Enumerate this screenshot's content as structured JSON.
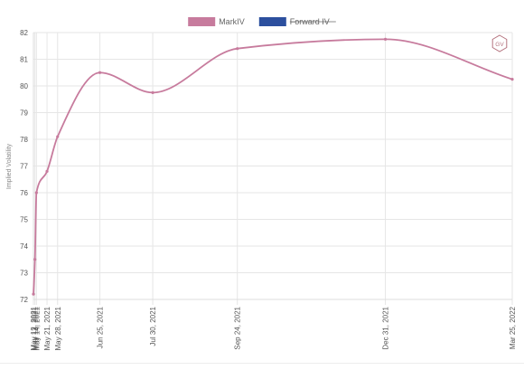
{
  "colors": {
    "markiv": "#c77b9d",
    "forward_iv": "#2c4f9e",
    "grid": "#e6e6e6"
  },
  "logo": {
    "text": "GV",
    "icon": "hexagon-logo-icon"
  },
  "chart_data": {
    "type": "line",
    "title": "",
    "xlabel": "",
    "ylabel": "Implied Volatility",
    "ylim": [
      72,
      82
    ],
    "yticks": [
      72,
      73,
      74,
      75,
      76,
      77,
      78,
      79,
      80,
      81,
      82
    ],
    "legend": {
      "position": "top",
      "entries": [
        {
          "name": "MarkIV",
          "color": "#c77b9d",
          "hidden": false
        },
        {
          "name": "Forward IV",
          "color": "#2c4f9e",
          "hidden": true
        }
      ]
    },
    "x_type": "date",
    "x_tick_labels": [
      "May 12, 2021",
      "May 13, 2021",
      "May 14, 2021",
      "May 21, 2021",
      "May 28, 2021",
      "Jun 25, 2021",
      "Jul 30, 2021",
      "Sep 24, 2021",
      "Dec 31, 2021",
      "Mar 25, 2022"
    ],
    "x_tick_dates": [
      "2021-05-12",
      "2021-05-13",
      "2021-05-14",
      "2021-05-21",
      "2021-05-28",
      "2021-06-25",
      "2021-07-30",
      "2021-09-24",
      "2021-12-31",
      "2022-03-25"
    ],
    "series": [
      {
        "name": "MarkIV",
        "color": "#c77b9d",
        "x": [
          "2021-05-12",
          "2021-05-13",
          "2021-05-14",
          "2021-05-21",
          "2021-05-28",
          "2021-06-25",
          "2021-07-30",
          "2021-09-24",
          "2021-12-31",
          "2022-03-25"
        ],
        "y": [
          72.2,
          73.5,
          76.0,
          76.8,
          78.1,
          80.5,
          79.75,
          81.4,
          81.75,
          80.25
        ]
      },
      {
        "name": "Forward IV",
        "color": "#2c4f9e",
        "hidden": true,
        "x": [],
        "y": []
      }
    ],
    "grid": true
  }
}
